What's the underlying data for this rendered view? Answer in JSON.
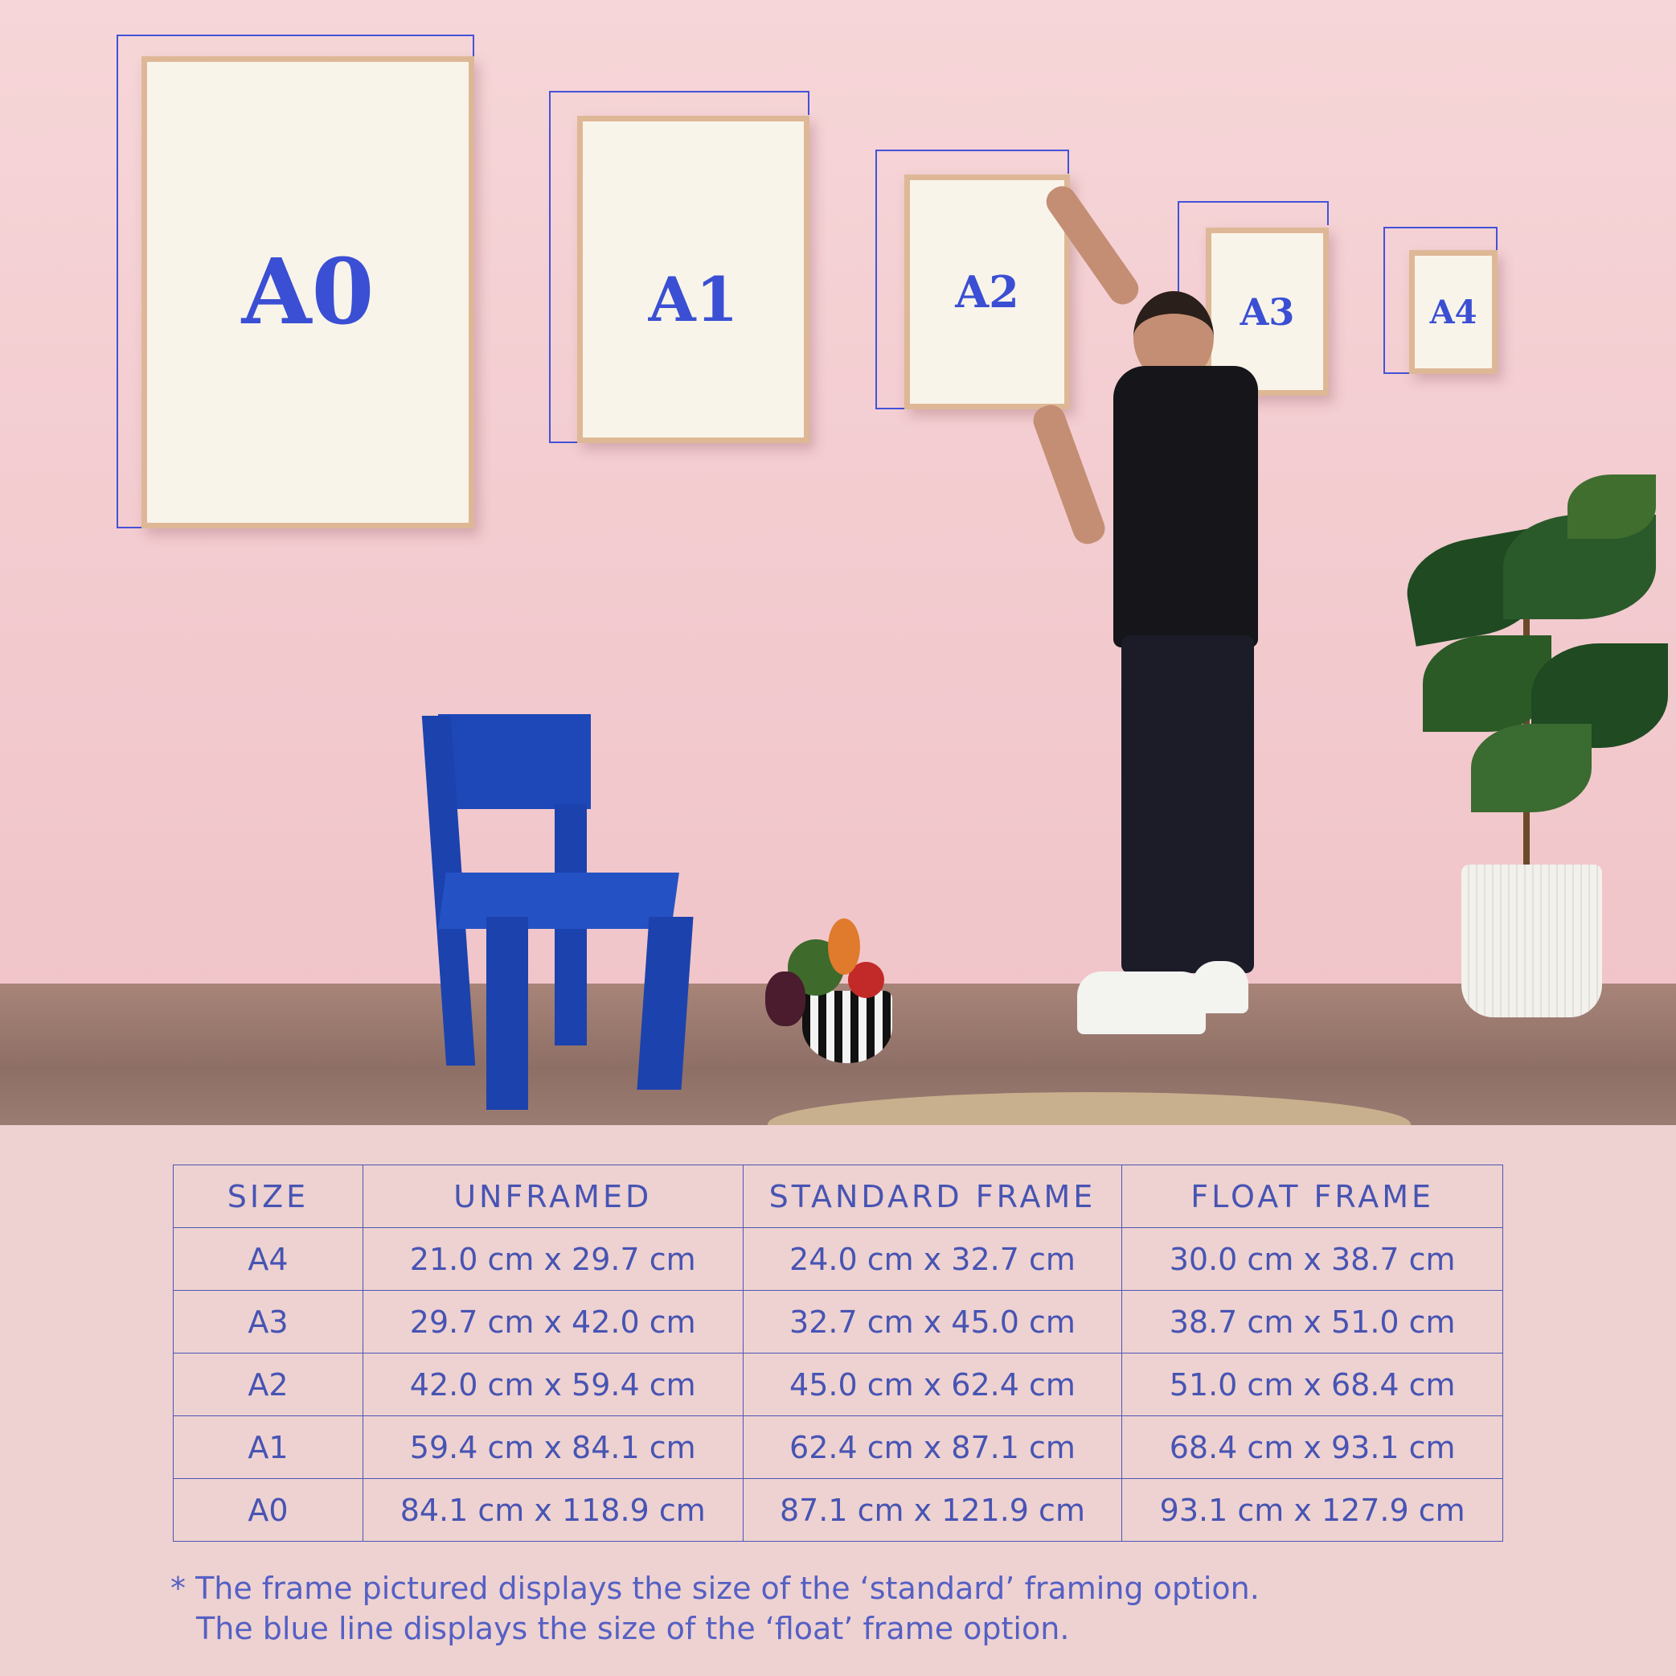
{
  "frames": [
    {
      "label": "A0"
    },
    {
      "label": "A1"
    },
    {
      "label": "A2"
    },
    {
      "label": "A3"
    },
    {
      "label": "A4"
    }
  ],
  "colors": {
    "accent_blue": "#3a4fd3",
    "table_text": "#4754b3",
    "background": "#eed2d1",
    "wall": "#f3cdd1"
  },
  "table": {
    "headers": [
      "SIZE",
      "UNFRAMED",
      "STANDARD FRAME",
      "FLOAT FRAME"
    ],
    "rows": [
      [
        "A4",
        "21.0 cm x 29.7 cm",
        "24.0 cm x 32.7 cm",
        "30.0 cm x 38.7 cm"
      ],
      [
        "A3",
        "29.7 cm x 42.0 cm",
        "32.7 cm x 45.0 cm",
        "38.7 cm x 51.0 cm"
      ],
      [
        "A2",
        "42.0 cm x 59.4 cm",
        "45.0 cm x 62.4 cm",
        "51.0 cm x 68.4 cm"
      ],
      [
        "A1",
        "59.4 cm x 84.1 cm",
        "62.4 cm x 87.1 cm",
        "68.4 cm x 93.1 cm"
      ],
      [
        "A0",
        "84.1 cm x 118.9 cm",
        "87.1 cm x 121.9 cm",
        "93.1 cm x 127.9 cm"
      ]
    ]
  },
  "note": {
    "line1": "* The frame pictured displays the size of the ‘standard’ framing option.",
    "line2": "The blue line displays the size of the ‘float’ frame option."
  }
}
